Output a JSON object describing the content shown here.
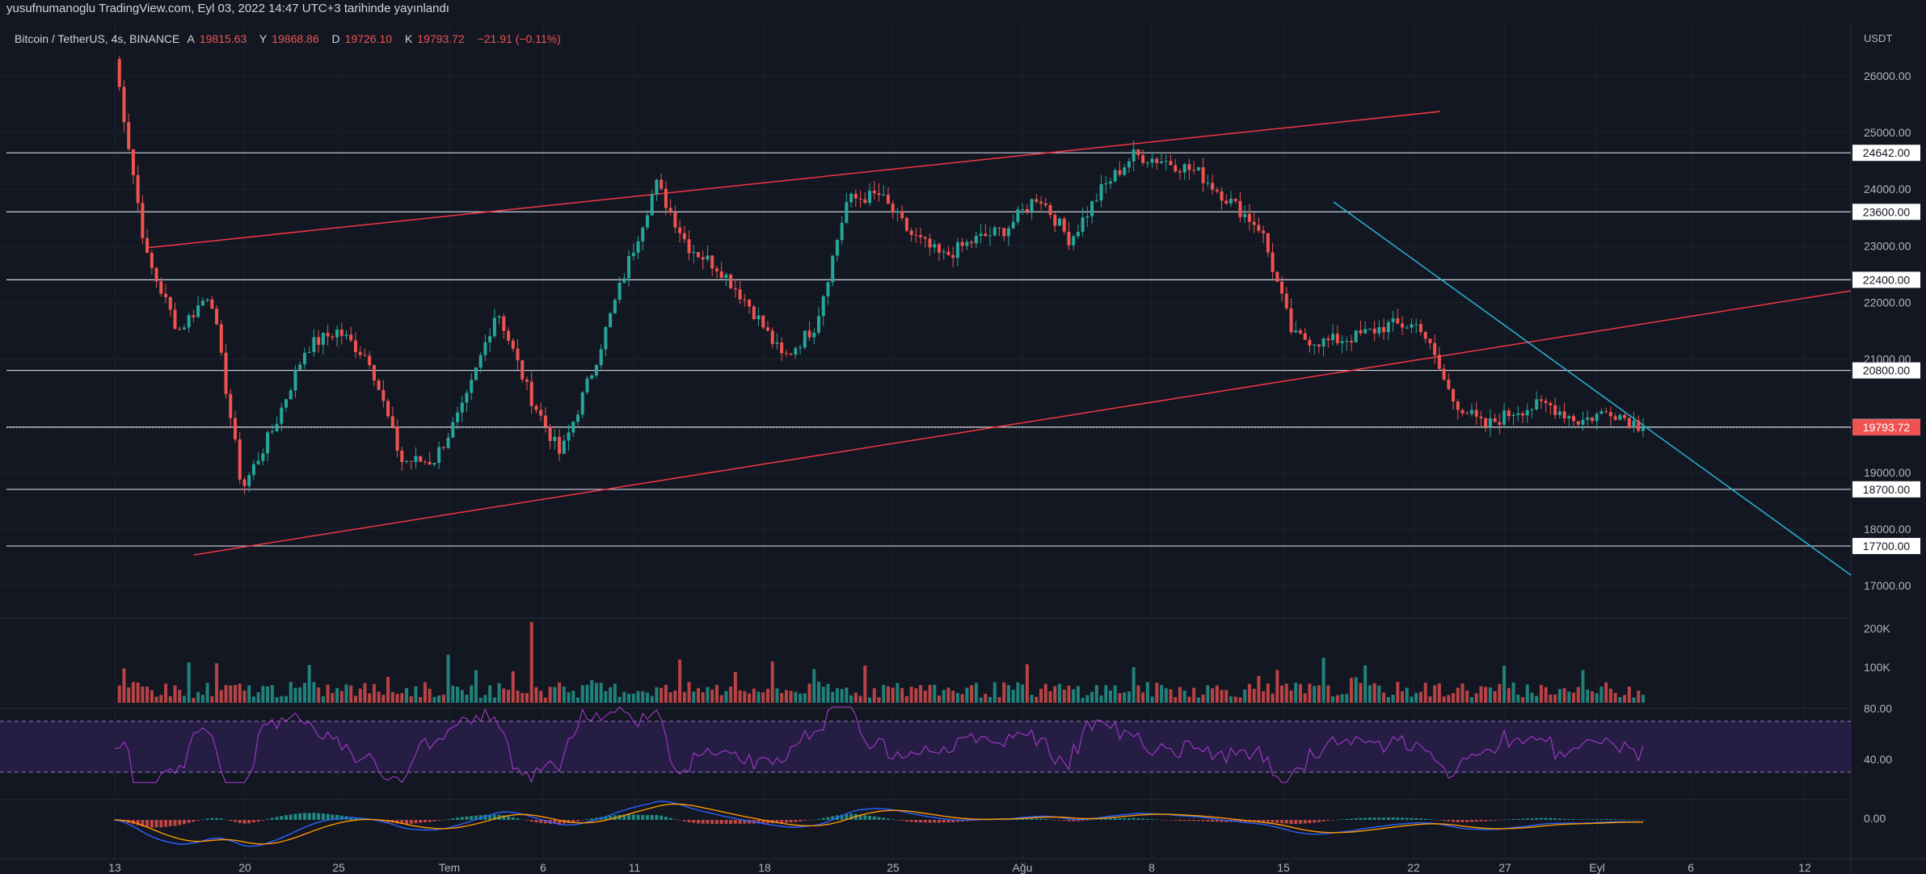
{
  "header": {
    "publish_line": "yusufnumanoglu TradingView.com, Eyl 03, 2022 14:47 UTC+3 tarihinde yayınlandı"
  },
  "legend": {
    "symbol": "Bitcoin / TetherUS, 4s, BINANCE",
    "o_label": "A",
    "o_value": "19815.63",
    "h_label": "Y",
    "h_value": "19868.86",
    "l_label": "D",
    "l_value": "19726.10",
    "c_label": "K",
    "c_value": "19793.72",
    "change": "−21.91 (−0.11%)"
  },
  "colors": {
    "background": "#131722",
    "up": "#26a69a",
    "down": "#ef5350",
    "trendline_red": "#f23645",
    "trendline_blue": "#29b6d6",
    "horizontal_level": "#d1d4dc",
    "rsi": "#b03ad8",
    "rsi_band": "#2a1f4a",
    "macd": "#2962ff",
    "signal": "#ff9800"
  },
  "price_axis": {
    "currency": "USDT",
    "ticks": [
      "26000.00",
      "25000.00",
      "24000.00",
      "23000.00",
      "22000.00",
      "21000.00",
      "19000.00",
      "18000.00",
      "17000.00"
    ]
  },
  "level_labels": [
    "24642.00",
    "23600.00",
    "22400.00",
    "20800.00",
    "19800.00",
    "18700.00",
    "17700.00"
  ],
  "last_price_label": "19793.72",
  "volume_axis": {
    "ticks": [
      "200K",
      "100K"
    ]
  },
  "rsi_axis": {
    "ticks": [
      "80.00",
      "40.00"
    ]
  },
  "macd_axis": {
    "ticks": [
      "0.00"
    ]
  },
  "time_axis": {
    "labels": [
      "13",
      "20",
      "25",
      "Tem",
      "6",
      "11",
      "18",
      "25",
      "Ağu",
      "8",
      "15",
      "22",
      "27",
      "Eyl",
      "6",
      "12"
    ]
  },
  "chart_data": {
    "type": "candlestick",
    "title": "Bitcoin / TetherUS, 4s, BINANCE",
    "xlabel": "",
    "ylabel": "USDT",
    "ylim": [
      16500,
      26500
    ],
    "horizontal_levels": [
      24642,
      23600,
      22400,
      20800,
      19800,
      18700,
      17700
    ],
    "last_price": 19793.72,
    "price_path_points": [
      {
        "t": "13",
        "price": 26300
      },
      {
        "t": "14",
        "price": 22800
      },
      {
        "t": "15",
        "price": 21500
      },
      {
        "t": "16",
        "price": 22200
      },
      {
        "t": "18",
        "price": 18700
      },
      {
        "t": "19",
        "price": 19800
      },
      {
        "t": "22",
        "price": 21200
      },
      {
        "t": "25",
        "price": 21500
      },
      {
        "t": "27",
        "price": 21000
      },
      {
        "t": "Tem",
        "price": 19200
      },
      {
        "t": "4",
        "price": 19200
      },
      {
        "t": "6",
        "price": 20200
      },
      {
        "t": "8",
        "price": 21900
      },
      {
        "t": "11",
        "price": 20400
      },
      {
        "t": "13",
        "price": 19300
      },
      {
        "t": "16",
        "price": 20800
      },
      {
        "t": "18",
        "price": 22500
      },
      {
        "t": "20",
        "price": 24100
      },
      {
        "t": "21",
        "price": 23000
      },
      {
        "t": "23",
        "price": 22600
      },
      {
        "t": "25",
        "price": 21900
      },
      {
        "t": "26",
        "price": 21000
      },
      {
        "t": "27",
        "price": 21600
      },
      {
        "t": "28",
        "price": 23800
      },
      {
        "t": "30",
        "price": 23900
      },
      {
        "t": "Ağu",
        "price": 23200
      },
      {
        "t": "4",
        "price": 22800
      },
      {
        "t": "6",
        "price": 23100
      },
      {
        "t": "8",
        "price": 23300
      },
      {
        "t": "9",
        "price": 23900
      },
      {
        "t": "10",
        "price": 23100
      },
      {
        "t": "11",
        "price": 24000
      },
      {
        "t": "13",
        "price": 24600
      },
      {
        "t": "14",
        "price": 24500
      },
      {
        "t": "15",
        "price": 24300
      },
      {
        "t": "17",
        "price": 23800
      },
      {
        "t": "18",
        "price": 23300
      },
      {
        "t": "19",
        "price": 21400
      },
      {
        "t": "20",
        "price": 21300
      },
      {
        "t": "22",
        "price": 21400
      },
      {
        "t": "24",
        "price": 21600
      },
      {
        "t": "26",
        "price": 21600
      },
      {
        "t": "27",
        "price": 20300
      },
      {
        "t": "29",
        "price": 19800
      },
      {
        "t": "30",
        "price": 20100
      },
      {
        "t": "31",
        "price": 20200
      },
      {
        "t": "Eyl",
        "price": 19900
      },
      {
        "t": "2",
        "price": 20100
      },
      {
        "t": "3",
        "price": 19793.72
      }
    ]
  }
}
